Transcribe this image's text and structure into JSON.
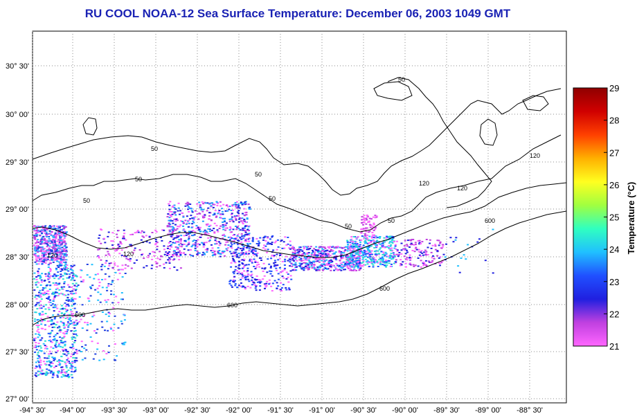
{
  "title": "RU COOL  NOAA-12  Sea Surface Temperature:  December 06, 2003 1049 GMT",
  "colorbar": {
    "label": "Temperature (°C)",
    "ticks": [
      "21",
      "22",
      "23",
      "24",
      "25",
      "26",
      "27",
      "28",
      "29"
    ],
    "min": 21,
    "max": 29,
    "colors": [
      "#ff66ff",
      "#c040e0",
      "#2020e0",
      "#2050ff",
      "#20c0ff",
      "#30ffc0",
      "#a0ff40",
      "#ffff20",
      "#ffb000",
      "#ff4000",
      "#d00000",
      "#900000"
    ]
  },
  "axes": {
    "x_ticks": [
      "-94° 30'",
      "-94° 00'",
      "-93° 30'",
      "-93° 00'",
      "-92° 30'",
      "-92° 00'",
      "-91° 30'",
      "-91° 00'",
      "-90° 30'",
      "-90° 00'",
      "-89° 30'",
      "-89° 00'",
      "-88° 30'"
    ],
    "y_ticks": [
      "30° 30'",
      "30° 00'",
      "29° 30'",
      "29° 00'",
      "28° 30'",
      "28° 00'",
      "27° 30'",
      "27° 00'"
    ],
    "grid": true
  },
  "contour_labels": [
    "50",
    "50",
    "50",
    "50",
    "50",
    "50",
    "50",
    "50",
    "120",
    "120",
    "120",
    "120",
    "120",
    "600",
    "600",
    "600",
    "600"
  ]
}
